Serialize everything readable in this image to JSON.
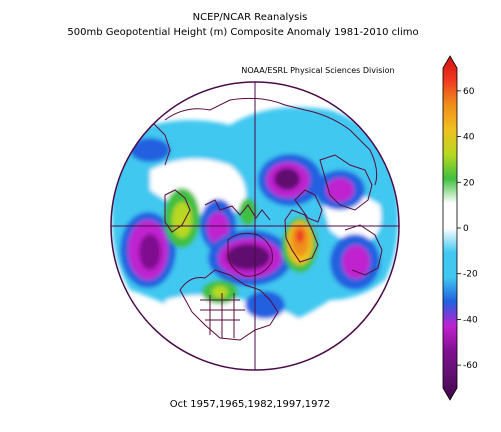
{
  "header": {
    "line1": "NCEP/NCAR Reanalysis",
    "line2": "500mb Geopotential Height (m) Composite Anomaly 1981-2010 climo",
    "credit": "NOAA/ESRL Physical Sciences Division"
  },
  "footer": {
    "caption": "Oct 1957,1965,1982,1997,1972"
  },
  "map": {
    "projection": "north-polar-stereographic",
    "background_color": "#ffffff",
    "ocean_color": "#ffffff",
    "coastline_color": "#5a0a3c",
    "grid_color": "#4a0a4a"
  },
  "colorbar": {
    "tick_labels": [
      "60",
      "40",
      "20",
      "0",
      "-20",
      "-40",
      "-60"
    ],
    "tick_values": [
      60,
      40,
      20,
      0,
      -20,
      -40,
      -60
    ],
    "range": [
      -70,
      70
    ],
    "stops": [
      {
        "value": 70,
        "color": "#d01010"
      },
      {
        "value": 60,
        "color": "#f03a20"
      },
      {
        "value": 50,
        "color": "#f0901a"
      },
      {
        "value": 40,
        "color": "#f0c020"
      },
      {
        "value": 30,
        "color": "#b8d820"
      },
      {
        "value": 20,
        "color": "#40c040"
      },
      {
        "value": 10,
        "color": "#ffffff"
      },
      {
        "value": 0,
        "color": "#ffffff"
      },
      {
        "value": -10,
        "color": "#40c8f0"
      },
      {
        "value": -20,
        "color": "#40c8f0"
      },
      {
        "value": -30,
        "color": "#2060e0"
      },
      {
        "value": -40,
        "color": "#c020d0"
      },
      {
        "value": -50,
        "color": "#801090"
      },
      {
        "value": -60,
        "color": "#601070"
      },
      {
        "value": -70,
        "color": "#400848"
      }
    ]
  },
  "anomaly_regions": [
    {
      "name": "arctic-trough-center",
      "color": "#601070"
    },
    {
      "name": "europe-ridge",
      "color": "#f0901a"
    },
    {
      "name": "north-pacific-trough",
      "color": "#801090"
    },
    {
      "name": "north-atlantic-trough",
      "color": "#c020d0"
    },
    {
      "name": "western-canada-ridge",
      "color": "#40c040"
    },
    {
      "name": "siberia-trough",
      "color": "#801090"
    }
  ]
}
